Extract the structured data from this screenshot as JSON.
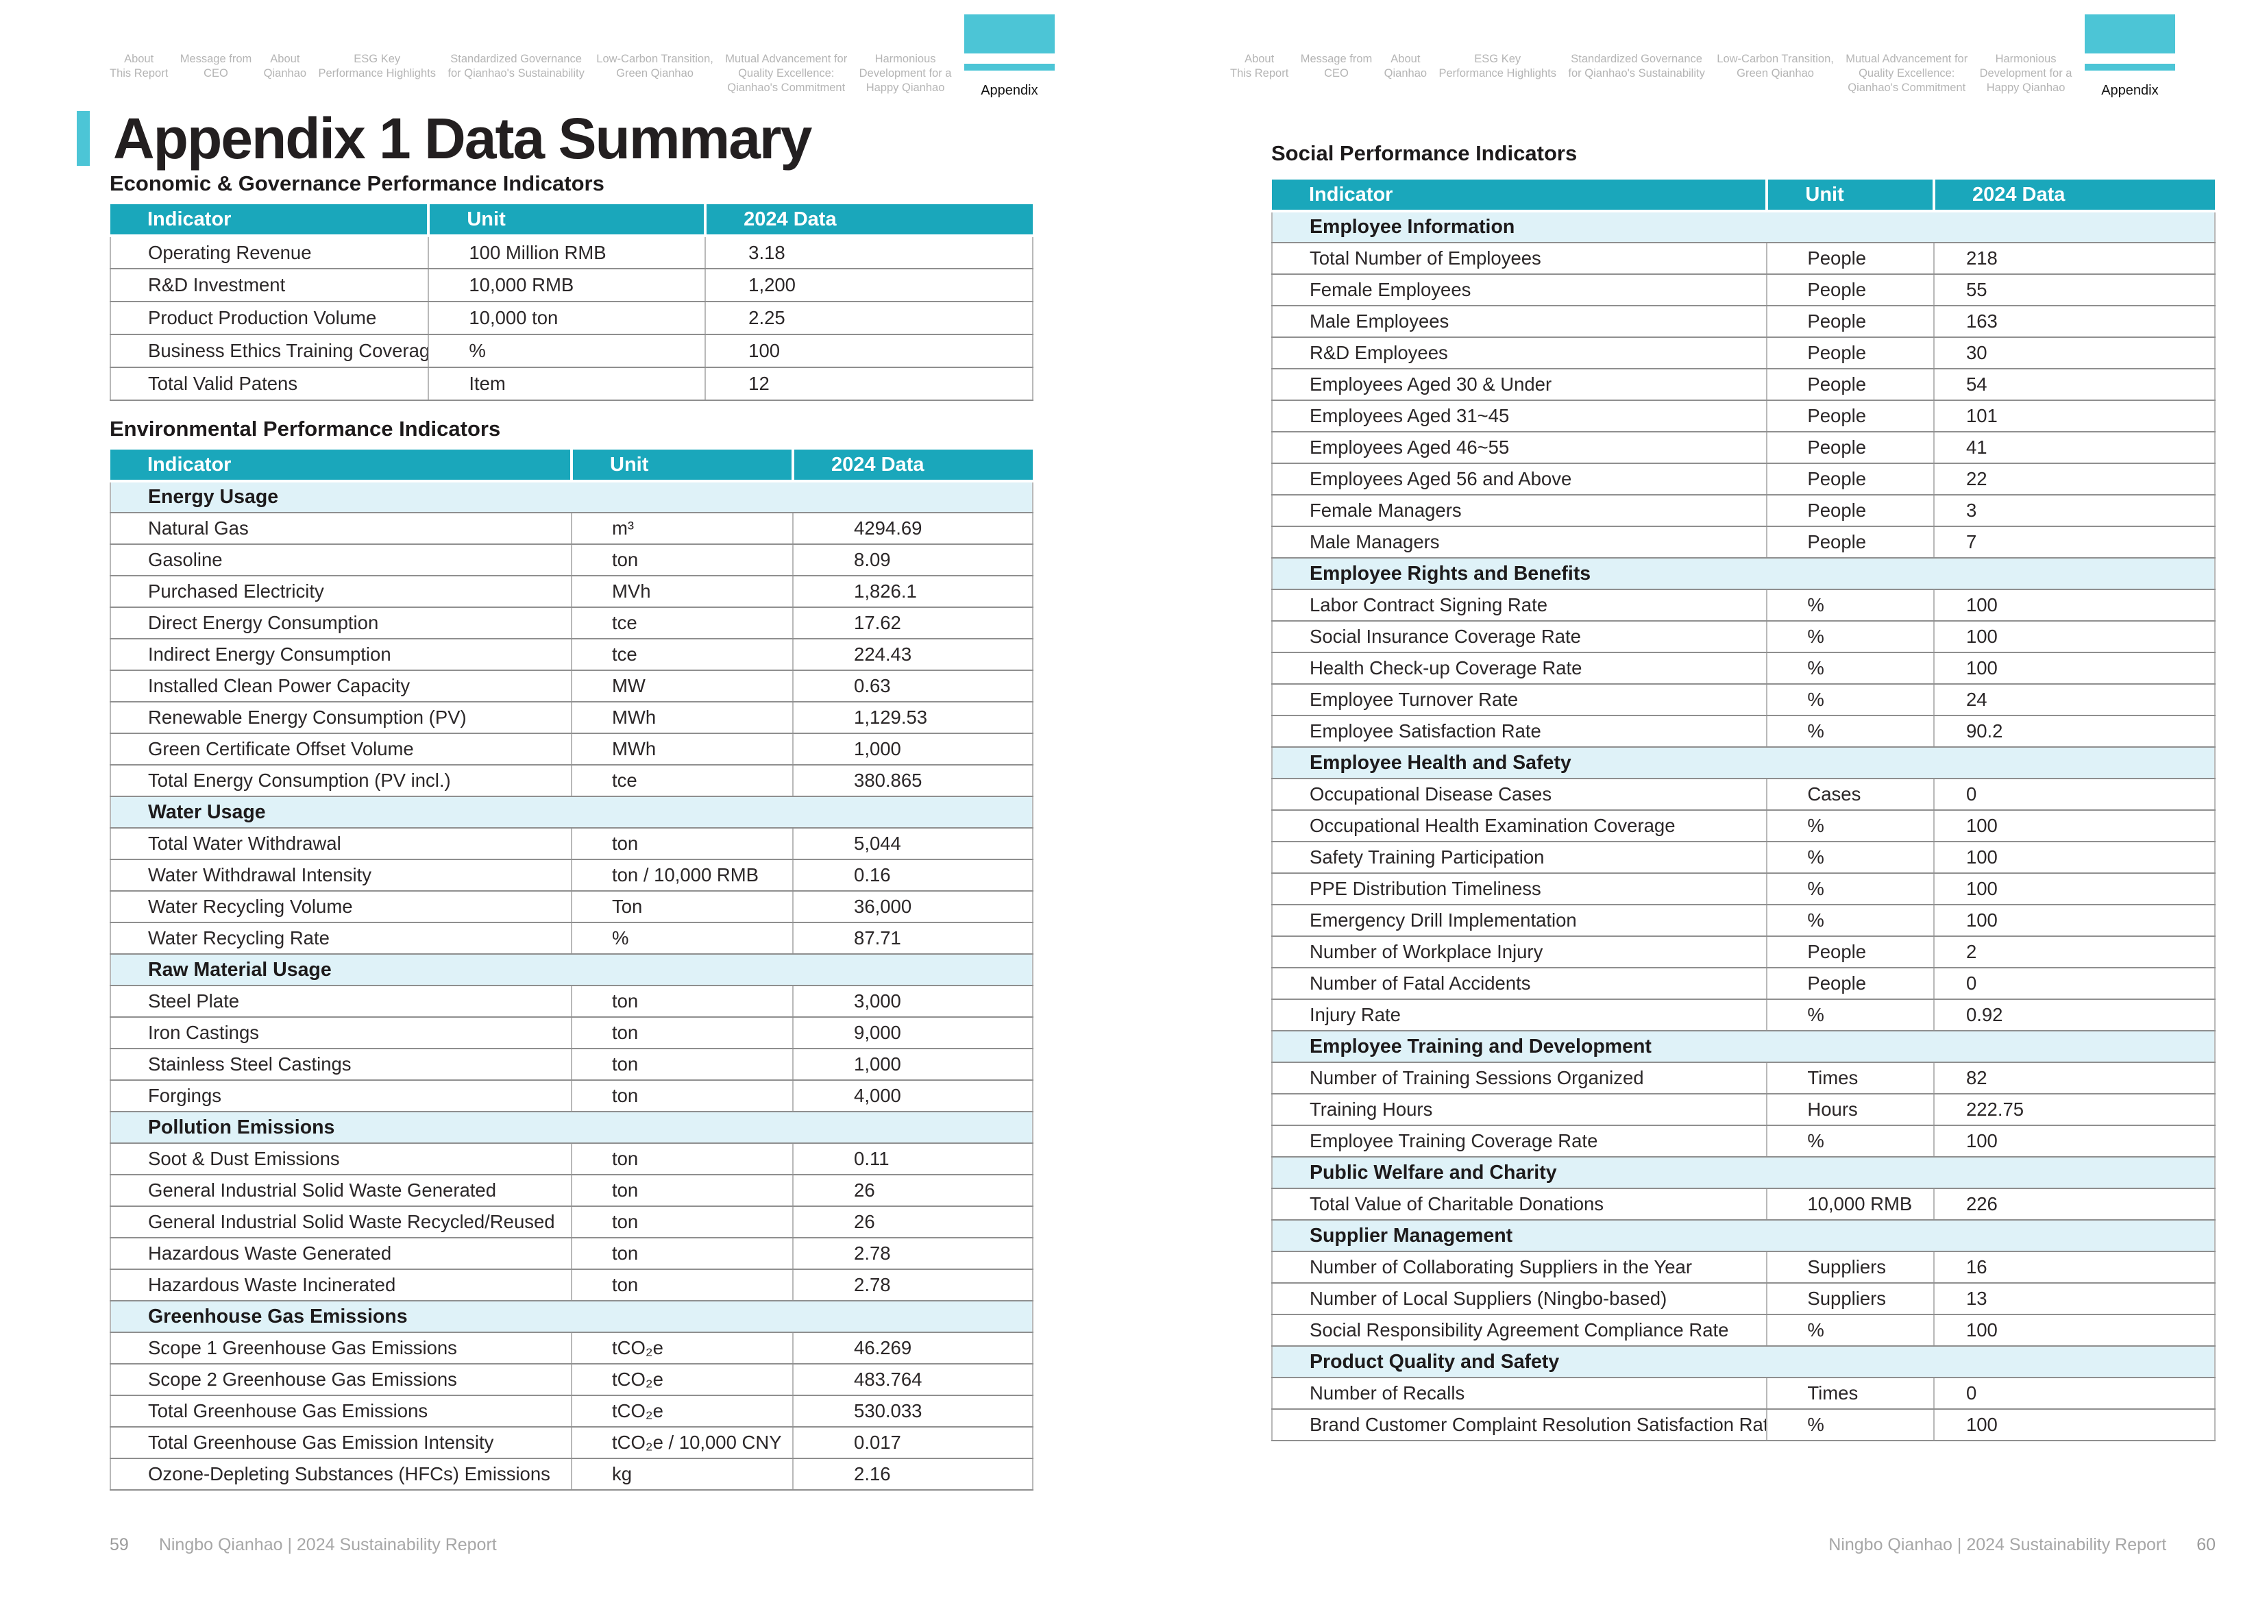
{
  "colors": {
    "teal": "#1aa7bb",
    "teal_light": "#4cc5d6",
    "section_bg": "#dff2f8"
  },
  "nav": {
    "items": [
      {
        "label": "About\nThis Report"
      },
      {
        "label": "Message from\nCEO"
      },
      {
        "label": "About\nQianhao"
      },
      {
        "label": "ESG Key\nPerformance Highlights"
      },
      {
        "label": "Standardized Governance\nfor Qianhao's Sustainability"
      },
      {
        "label": "Low-Carbon Transition,\nGreen Qianhao"
      },
      {
        "label": "Mutual Advancement for\nQuality Excellence:\nQianhao's Commitment"
      },
      {
        "label": "Harmonious\nDevelopment for a\nHappy Qianhao"
      },
      {
        "label": "Appendix"
      }
    ]
  },
  "page_left": {
    "title": "Appendix 1 Data Summary",
    "footer": {
      "page_number": "59",
      "text": "Ningbo Qianhao | 2024 Sustainability Report"
    }
  },
  "page_right": {
    "footer": {
      "text": "Ningbo Qianhao | 2024 Sustainability Report",
      "page_number": "60"
    }
  },
  "tables": {
    "economic": {
      "heading": "Economic & Governance Performance Indicators",
      "columns": [
        "Indicator",
        "Unit",
        "2024 Data"
      ],
      "rows": [
        {
          "indicator": "Operating Revenue",
          "unit": "100 Million RMB",
          "value": "3.18"
        },
        {
          "indicator": "R&D Investment",
          "unit": "10,000 RMB",
          "value": "1,200"
        },
        {
          "indicator": "Product Production Volume",
          "unit": "10,000 ton",
          "value": "2.25"
        },
        {
          "indicator": "Business Ethics Training Coverage Rate",
          "unit": "%",
          "value": "100"
        },
        {
          "indicator": "Total Valid Patens",
          "unit": "Item",
          "value": "12"
        }
      ]
    },
    "environmental": {
      "heading": "Environmental Performance Indicators",
      "columns": [
        "Indicator",
        "Unit",
        "2024 Data"
      ],
      "rows": [
        {
          "section": "Energy Usage"
        },
        {
          "indicator": "Natural Gas",
          "unit": "m³",
          "value": "4294.69"
        },
        {
          "indicator": "Gasoline",
          "unit": "ton",
          "value": "8.09"
        },
        {
          "indicator": "Purchased Electricity",
          "unit": "MVh",
          "value": "1,826.1"
        },
        {
          "indicator": "Direct Energy Consumption",
          "unit": "tce",
          "value": "17.62"
        },
        {
          "indicator": "Indirect Energy Consumption",
          "unit": "tce",
          "value": "224.43"
        },
        {
          "indicator": "Installed Clean Power Capacity",
          "unit": "MW",
          "value": "0.63"
        },
        {
          "indicator": "Renewable Energy Consumption (PV)",
          "unit": "MWh",
          "value": "1,129.53"
        },
        {
          "indicator": "Green Certificate Offset Volume",
          "unit": "MWh",
          "value": "1,000"
        },
        {
          "indicator": "Total Energy Consumption (PV incl.)",
          "unit": "tce",
          "value": "380.865"
        },
        {
          "section": "Water Usage"
        },
        {
          "indicator": "Total Water Withdrawal",
          "unit": "ton",
          "value": "5,044"
        },
        {
          "indicator": "Water Withdrawal Intensity",
          "unit": "ton / 10,000 RMB",
          "value": "0.16"
        },
        {
          "indicator": "Water Recycling Volume",
          "unit": "Ton",
          "value": "36,000"
        },
        {
          "indicator": "Water Recycling Rate",
          "unit": "%",
          "value": "87.71"
        },
        {
          "section": "Raw Material Usage"
        },
        {
          "indicator": "Steel Plate",
          "unit": "ton",
          "value": "3,000"
        },
        {
          "indicator": "Iron Castings",
          "unit": "ton",
          "value": "9,000"
        },
        {
          "indicator": "Stainless Steel Castings",
          "unit": "ton",
          "value": "1,000"
        },
        {
          "indicator": "Forgings",
          "unit": "ton",
          "value": "4,000"
        },
        {
          "section": "Pollution Emissions"
        },
        {
          "indicator": "Soot & Dust Emissions",
          "unit": "ton",
          "value": "0.11"
        },
        {
          "indicator": "General Industrial Solid Waste Generated",
          "unit": "ton",
          "value": "26"
        },
        {
          "indicator": "General Industrial Solid Waste Recycled/Reused",
          "unit": "ton",
          "value": "26"
        },
        {
          "indicator": "Hazardous Waste Generated",
          "unit": "ton",
          "value": "2.78"
        },
        {
          "indicator": "Hazardous Waste Incinerated",
          "unit": "ton",
          "value": "2.78"
        },
        {
          "section": "Greenhouse Gas Emissions"
        },
        {
          "indicator": "Scope 1 Greenhouse Gas Emissions",
          "unit": "tCO₂e",
          "value": "46.269"
        },
        {
          "indicator": "Scope 2 Greenhouse Gas Emissions",
          "unit": "tCO₂e",
          "value": "483.764"
        },
        {
          "indicator": "Total Greenhouse Gas Emissions",
          "unit": "tCO₂e",
          "value": "530.033"
        },
        {
          "indicator": "Total Greenhouse Gas Emission Intensity",
          "unit": "tCO₂e / 10,000 CNY",
          "value": "0.017"
        },
        {
          "indicator": "Ozone-Depleting Substances (HFCs) Emissions",
          "unit": "kg",
          "value": "2.16"
        }
      ]
    },
    "social": {
      "heading": "Social Performance Indicators",
      "columns": [
        "Indicator",
        "Unit",
        "2024 Data"
      ],
      "rows": [
        {
          "section": "Employee Information"
        },
        {
          "indicator": "Total Number of Employees",
          "unit": "People",
          "value": "218"
        },
        {
          "indicator": "Female Employees",
          "unit": "People",
          "value": "55"
        },
        {
          "indicator": "Male Employees",
          "unit": "People",
          "value": "163"
        },
        {
          "indicator": "R&D Employees",
          "unit": "People",
          "value": "30"
        },
        {
          "indicator": "Employees Aged 30 & Under",
          "unit": "People",
          "value": "54"
        },
        {
          "indicator": "Employees Aged 31~45",
          "unit": "People",
          "value": "101"
        },
        {
          "indicator": "Employees Aged 46~55",
          "unit": "People",
          "value": "41"
        },
        {
          "indicator": "Employees Aged 56 and Above",
          "unit": "People",
          "value": "22"
        },
        {
          "indicator": "Female Managers",
          "unit": "People",
          "value": "3"
        },
        {
          "indicator": "Male Managers",
          "unit": "People",
          "value": "7"
        },
        {
          "section": "Employee Rights and Benefits"
        },
        {
          "indicator": "Labor Contract Signing Rate",
          "unit": "%",
          "value": "100"
        },
        {
          "indicator": "Social Insurance Coverage Rate",
          "unit": "%",
          "value": "100"
        },
        {
          "indicator": "Health Check-up Coverage Rate",
          "unit": "%",
          "value": "100"
        },
        {
          "indicator": "Employee Turnover Rate",
          "unit": "%",
          "value": "24"
        },
        {
          "indicator": "Employee Satisfaction Rate",
          "unit": "%",
          "value": "90.2"
        },
        {
          "section": "Employee Health and Safety"
        },
        {
          "indicator": "Occupational Disease Cases",
          "unit": "Cases",
          "value": "0"
        },
        {
          "indicator": "Occupational Health Examination Coverage",
          "unit": "%",
          "value": "100"
        },
        {
          "indicator": "Safety Training Participation",
          "unit": "%",
          "value": "100"
        },
        {
          "indicator": "PPE Distribution Timeliness",
          "unit": "%",
          "value": "100"
        },
        {
          "indicator": "Emergency Drill Implementation",
          "unit": "%",
          "value": "100"
        },
        {
          "indicator": "Number of Workplace Injury",
          "unit": "People",
          "value": "2"
        },
        {
          "indicator": "Number of Fatal Accidents",
          "unit": "People",
          "value": "0"
        },
        {
          "indicator": "Injury Rate",
          "unit": "%",
          "value": "0.92"
        },
        {
          "section": "Employee Training and Development"
        },
        {
          "indicator": "Number of Training Sessions Organized",
          "unit": "Times",
          "value": "82"
        },
        {
          "indicator": "Training Hours",
          "unit": "Hours",
          "value": "222.75"
        },
        {
          "indicator": "Employee Training Coverage Rate",
          "unit": "%",
          "value": "100"
        },
        {
          "section": "Public Welfare and Charity"
        },
        {
          "indicator": "Total Value of Charitable Donations",
          "unit": "10,000 RMB",
          "value": "226"
        },
        {
          "section": "Supplier Management"
        },
        {
          "indicator": "Number of Collaborating Suppliers in the Year",
          "unit": "Suppliers",
          "value": "16"
        },
        {
          "indicator": "Number of Local Suppliers (Ningbo-based)",
          "unit": "Suppliers",
          "value": "13"
        },
        {
          "indicator": "Social Responsibility Agreement Compliance Rate",
          "unit": "%",
          "value": "100"
        },
        {
          "section": "Product Quality and Safety"
        },
        {
          "indicator": "Number of Recalls",
          "unit": "Times",
          "value": "0"
        },
        {
          "indicator": "Brand Customer Complaint Resolution Satisfaction Rate",
          "unit": "%",
          "value": "100"
        }
      ]
    }
  }
}
